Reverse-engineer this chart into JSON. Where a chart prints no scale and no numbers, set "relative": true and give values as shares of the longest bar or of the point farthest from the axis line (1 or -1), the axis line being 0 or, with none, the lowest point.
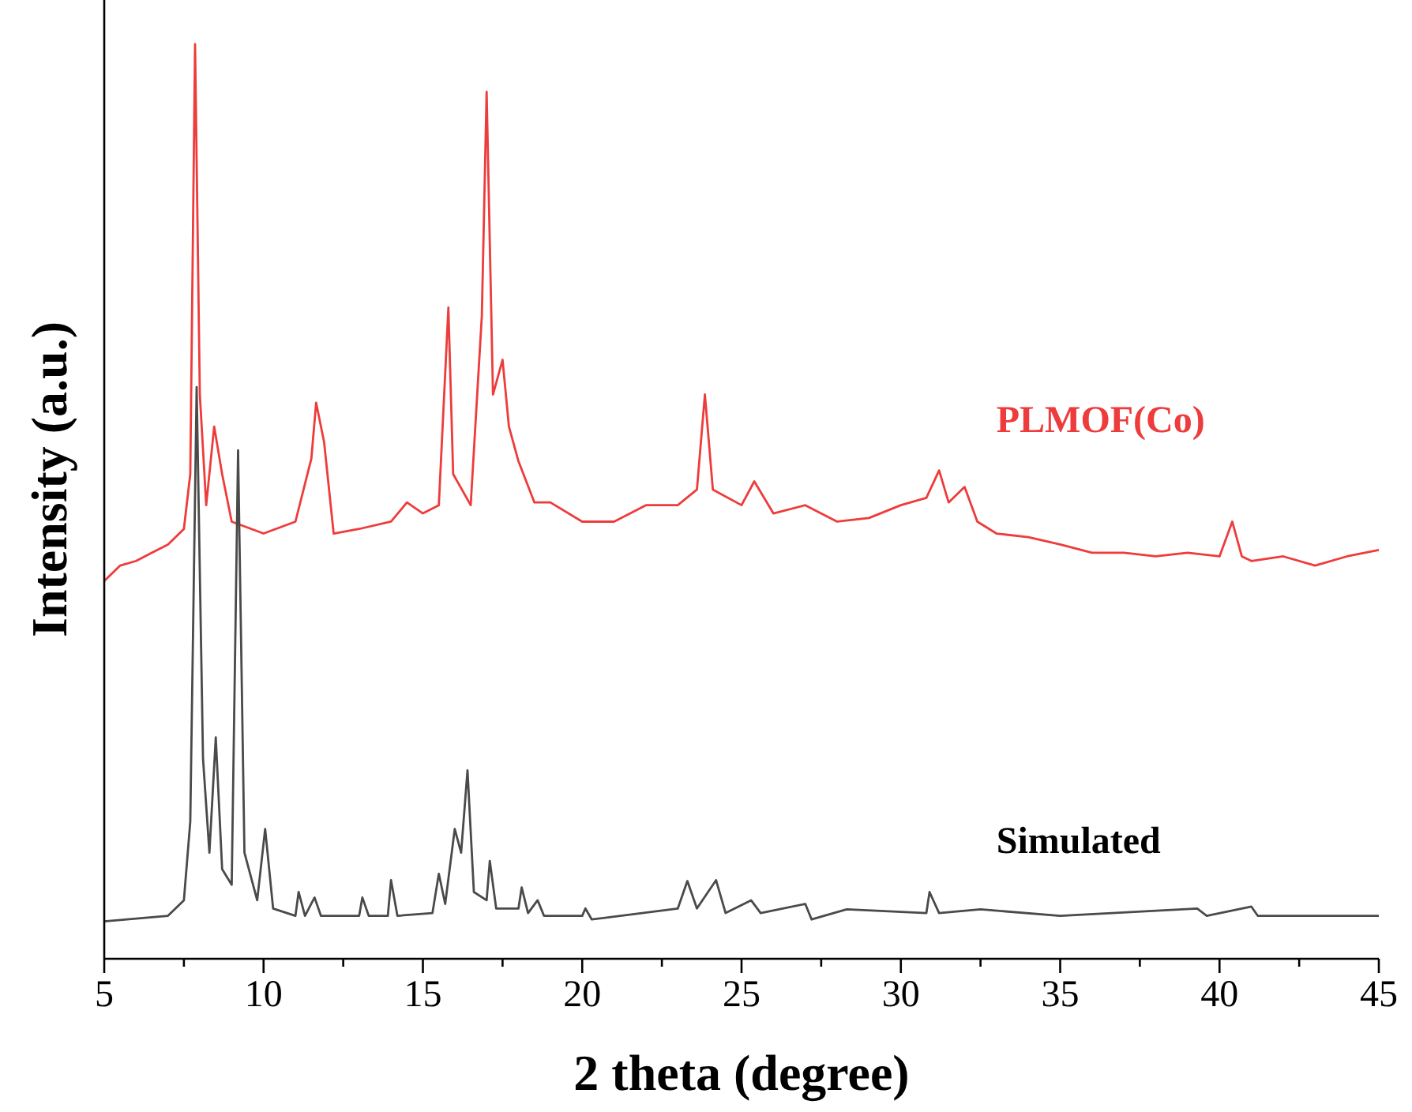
{
  "chart_data": {
    "type": "line",
    "relative": true,
    "xlabel": "2 theta (degree)",
    "ylabel": "Intensity (a.u.)",
    "xlim": [
      5,
      45
    ],
    "xticks": [
      5,
      {
        "value": 7.5,
        "label": null
      },
      10,
      {
        "value": 12.5,
        "label": null
      },
      15,
      {
        "value": 17.5,
        "label": null
      },
      20,
      {
        "value": 22.5,
        "label": null
      },
      25,
      {
        "value": 27.5,
        "label": null
      },
      30,
      {
        "value": 32.5,
        "label": null
      },
      35,
      {
        "value": 37.5,
        "label": null
      },
      40,
      {
        "value": 42.5,
        "label": null
      },
      45
    ],
    "grid": false,
    "marker": "none",
    "line_style": "solid",
    "series": [
      {
        "name": "PLMOF(Co)",
        "color": "#ee3b3b",
        "x": [
          5,
          5.5,
          6,
          6.5,
          7,
          7.5,
          7.7,
          7.85,
          8,
          8.2,
          8.45,
          8.7,
          9,
          10,
          11,
          11.5,
          11.65,
          11.9,
          12.2,
          13,
          14,
          14.5,
          15,
          15.5,
          15.8,
          15.95,
          16.5,
          16.85,
          17,
          17.2,
          17.5,
          17.7,
          18,
          18.5,
          19,
          20,
          21,
          22,
          23,
          23.6,
          23.85,
          24.1,
          25,
          25.4,
          26,
          27,
          28,
          29,
          30,
          30.8,
          31.2,
          31.5,
          32,
          32.4,
          33,
          34,
          35,
          36,
          37,
          38,
          39,
          40,
          40.4,
          40.7,
          41,
          42,
          43,
          44,
          45
        ],
        "values": [
          0.413,
          0.43,
          0.435,
          0.444,
          0.453,
          0.47,
          0.53,
          1,
          0.617,
          0.496,
          0.582,
          0.53,
          0.478,
          0.465,
          0.478,
          0.547,
          0.608,
          0.565,
          0.465,
          0.47,
          0.478,
          0.499,
          0.487,
          0.496,
          0.712,
          0.53,
          0.496,
          0.703,
          0.948,
          0.617,
          0.655,
          0.582,
          0.544,
          0.499,
          0.499,
          0.478,
          0.478,
          0.496,
          0.496,
          0.513,
          0.617,
          0.513,
          0.496,
          0.522,
          0.487,
          0.496,
          0.478,
          0.482,
          0.496,
          0.504,
          0.534,
          0.499,
          0.516,
          0.478,
          0.465,
          0.461,
          0.453,
          0.444,
          0.444,
          0.44,
          0.444,
          0.44,
          0.478,
          0.44,
          0.435,
          0.44,
          0.43,
          0.44,
          0.447
        ]
      },
      {
        "name": "Simulated",
        "color": "#4a4a4a",
        "x": [
          5,
          7,
          7.5,
          7.7,
          7.9,
          8.1,
          8.3,
          8.5,
          8.7,
          9,
          9.2,
          9.4,
          9.8,
          10.05,
          10.3,
          11,
          11.1,
          11.3,
          11.6,
          11.8,
          13,
          13.1,
          13.3,
          13.9,
          14,
          14.2,
          15.3,
          15.5,
          15.7,
          16,
          16.2,
          16.4,
          16.6,
          17,
          17.1,
          17.3,
          18,
          18.1,
          18.3,
          18.6,
          18.8,
          20,
          20.1,
          20.3,
          23,
          23.3,
          23.6,
          24.2,
          24.5,
          25.3,
          25.6,
          27,
          27.2,
          28.3,
          30.8,
          30.9,
          31.2,
          32.5,
          35,
          39.3,
          39.6,
          41,
          41.2,
          45
        ],
        "values": [
          0.041,
          0.047,
          0.064,
          0.15,
          0.625,
          0.219,
          0.116,
          0.242,
          0.098,
          0.081,
          0.556,
          0.116,
          0.064,
          0.142,
          0.055,
          0.047,
          0.073,
          0.047,
          0.067,
          0.047,
          0.047,
          0.067,
          0.047,
          0.047,
          0.086,
          0.047,
          0.05,
          0.093,
          0.06,
          0.142,
          0.116,
          0.206,
          0.073,
          0.064,
          0.107,
          0.055,
          0.055,
          0.078,
          0.05,
          0.064,
          0.047,
          0.047,
          0.055,
          0.043,
          0.055,
          0.085,
          0.055,
          0.086,
          0.05,
          0.064,
          0.05,
          0.06,
          0.043,
          0.054,
          0.05,
          0.073,
          0.05,
          0.054,
          0.047,
          0.055,
          0.047,
          0.057,
          0.047,
          0.047
        ]
      }
    ]
  }
}
